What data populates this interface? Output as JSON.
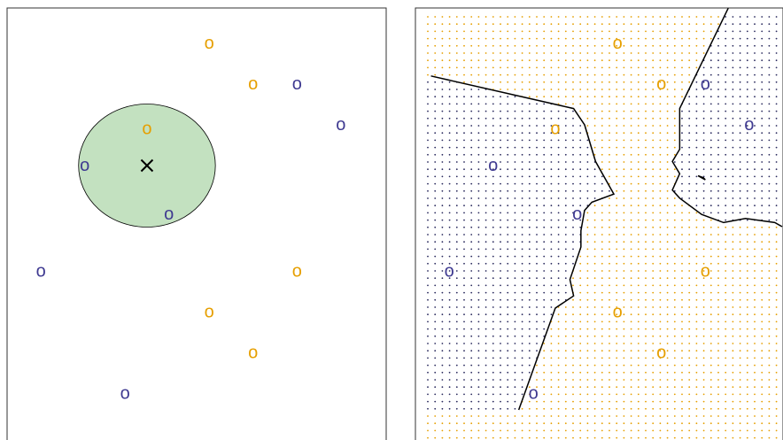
{
  "chart_data": [
    {
      "type": "scatter",
      "title": "",
      "xlim": [
        0,
        1
      ],
      "ylim": [
        0,
        1
      ],
      "grid": false,
      "legend": "none",
      "marker_glyph": "o",
      "classes": [
        {
          "color": "#E69F00",
          "points": [
            [
              0.55,
              0.9
            ],
            [
              0.67,
              0.8
            ],
            [
              0.38,
              0.69
            ],
            [
              0.79,
              0.34
            ],
            [
              0.55,
              0.24
            ],
            [
              0.67,
              0.14
            ]
          ]
        },
        {
          "color": "#3F3A91",
          "points": [
            [
              0.79,
              0.8
            ],
            [
              0.91,
              0.7
            ],
            [
              0.21,
              0.6
            ],
            [
              0.44,
              0.48
            ],
            [
              0.09,
              0.34
            ],
            [
              0.32,
              0.04
            ]
          ]
        }
      ],
      "query_point": {
        "x": 0.38,
        "y": 0.6,
        "marker": "x",
        "color": "#000000"
      },
      "neighborhood_circle": {
        "cx": 0.38,
        "cy": 0.6,
        "r": 0.187,
        "fill": "#C3E1C0"
      }
    },
    {
      "type": "scatter",
      "title": "",
      "xlim": [
        0,
        1
      ],
      "ylim": [
        0,
        1
      ],
      "grid": false,
      "legend": "none",
      "marker_glyph": "o",
      "background_grid": "classification dots",
      "classes": [
        {
          "color": "#E69F00",
          "points": [
            [
              0.55,
              0.9
            ],
            [
              0.67,
              0.8
            ],
            [
              0.38,
              0.69
            ],
            [
              0.79,
              0.34
            ],
            [
              0.55,
              0.24
            ],
            [
              0.67,
              0.14
            ]
          ]
        },
        {
          "color": "#3F3A91",
          "points": [
            [
              0.79,
              0.8
            ],
            [
              0.91,
              0.7
            ],
            [
              0.21,
              0.6
            ],
            [
              0.44,
              0.48
            ],
            [
              0.09,
              0.34
            ],
            [
              0.32,
              0.04
            ]
          ]
        }
      ],
      "decision_boundaries": [
        [
          [
            0.04,
            0.82
          ],
          [
            0.43,
            0.74
          ],
          [
            0.46,
            0.7
          ],
          [
            0.49,
            0.61
          ],
          [
            0.54,
            0.53
          ],
          [
            0.48,
            0.51
          ],
          [
            0.46,
            0.49
          ],
          [
            0.45,
            0.44
          ],
          [
            0.45,
            0.4
          ],
          [
            0.42,
            0.32
          ],
          [
            0.43,
            0.28
          ],
          [
            0.38,
            0.25
          ],
          [
            0.36,
            0.2
          ],
          [
            0.32,
            0.1
          ],
          [
            0.28,
            0.0
          ]
        ],
        [
          [
            0.86,
            1.0
          ],
          [
            0.72,
            0.74
          ],
          [
            0.72,
            0.64
          ],
          [
            0.7,
            0.61
          ],
          [
            0.72,
            0.58
          ],
          [
            0.7,
            0.54
          ],
          [
            0.72,
            0.52
          ],
          [
            0.78,
            0.48
          ],
          [
            0.84,
            0.46
          ],
          [
            0.9,
            0.47
          ],
          [
            0.98,
            0.46
          ],
          [
            1.0,
            0.45
          ]
        ]
      ],
      "boundary_island": [
        [
          0.77,
          0.575
        ],
        [
          0.79,
          0.565
        ],
        [
          0.785,
          0.57
        ],
        [
          0.77,
          0.575
        ]
      ]
    }
  ]
}
